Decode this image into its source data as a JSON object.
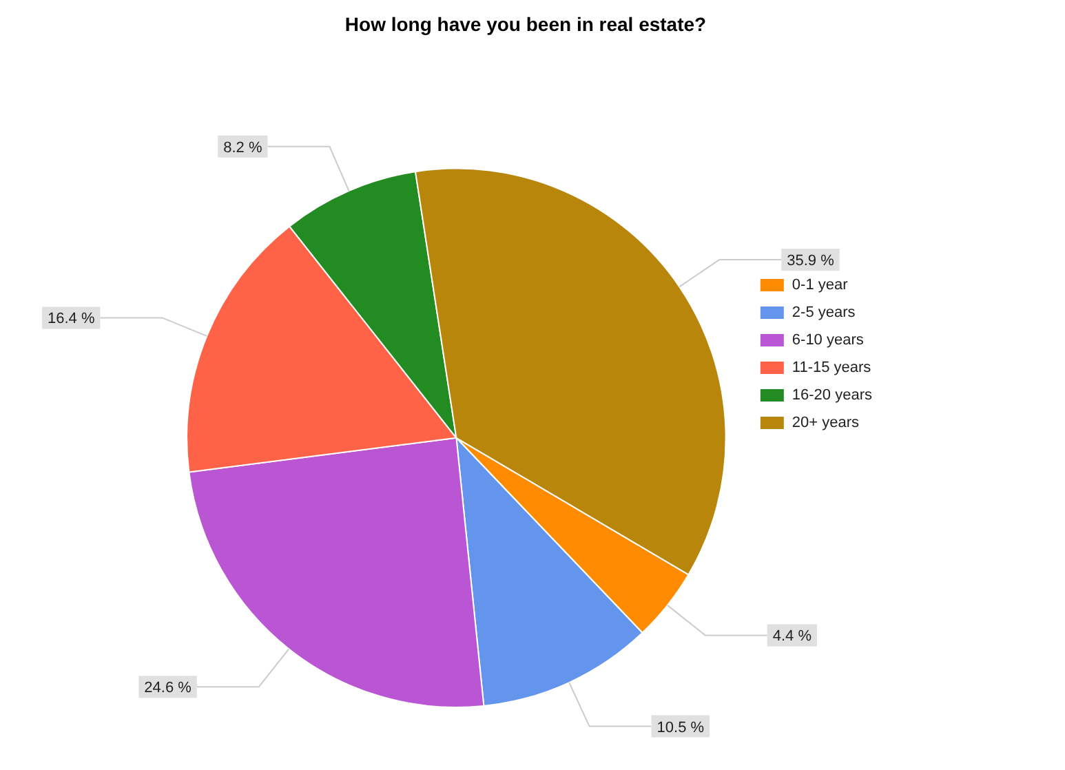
{
  "chart_data": {
    "type": "pie",
    "title": "How long have you been in real estate?",
    "categories": [
      "0-1 year",
      "2-5 years",
      "6-10 years",
      "11-15 years",
      "16-20 years",
      "20+ years"
    ],
    "values": [
      4.4,
      10.5,
      24.6,
      16.4,
      8.2,
      35.9
    ],
    "colors": [
      "#ff8c00",
      "#6495ed",
      "#ba55d3",
      "#ff6347",
      "#228b22",
      "#b8860b"
    ],
    "value_labels": [
      "4.4 %",
      "10.5 %",
      "24.6 %",
      "16.4 %",
      "8.2 %",
      "35.9 %"
    ],
    "legend": "right"
  }
}
